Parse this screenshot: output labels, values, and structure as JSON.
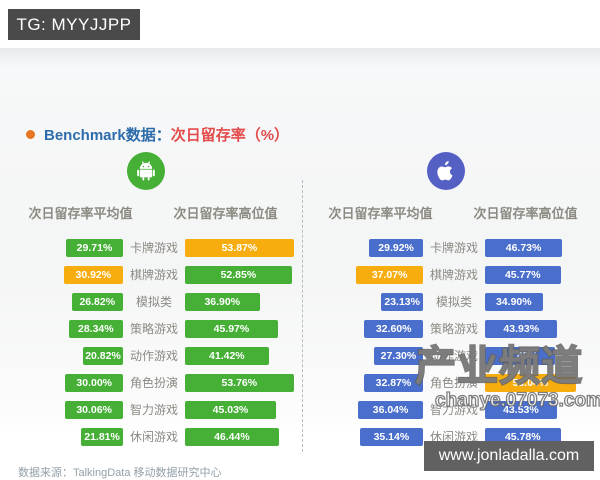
{
  "overlay": {
    "tg_label": "TG: MYYJJPP",
    "site_label": "www.jonladalla.com"
  },
  "header": {
    "title_prefix": "Benchmark数据：",
    "title_highlight": "次日留存率（%）",
    "bullet_color": "#e87522"
  },
  "columns": {
    "average_label": "次日留存率平均值",
    "high_label": "次日留存率高位值"
  },
  "footer": {
    "source": "数据来源：TalkingData 移动数据研究中心"
  },
  "watermark": {
    "title": "产业频道",
    "url": "chanye.07073.com"
  },
  "colors": {
    "android_bar": "#45b035",
    "ios_bar": "#4a6ecb",
    "highlight_bar": "#f8ad0f",
    "title_blue": "#2d6cab",
    "title_red": "#e44b4b"
  },
  "chart_data": [
    {
      "type": "bar",
      "platform": "android",
      "icon": "android-icon",
      "icon_color": "#45b035",
      "unit": "%",
      "categories": [
        "卡牌游戏",
        "棋牌游戏",
        "模拟类",
        "策略游戏",
        "动作游戏",
        "角色扮演",
        "智力游戏",
        "休闲游戏"
      ],
      "series": [
        {
          "name": "次日留存率平均值",
          "values": [
            29.71,
            30.92,
            26.82,
            28.34,
            20.82,
            30.0,
            30.06,
            21.81
          ],
          "highlight_indexes": [
            1
          ]
        },
        {
          "name": "次日留存率高位值",
          "values": [
            53.87,
            52.85,
            36.9,
            45.97,
            41.42,
            53.76,
            45.03,
            46.44
          ],
          "highlight_indexes": [
            0
          ]
        }
      ],
      "bar_color": "#45b035",
      "highlight_color": "#f8ad0f"
    },
    {
      "type": "bar",
      "platform": "ios",
      "icon": "apple-icon",
      "icon_color": "#5560c4",
      "unit": "%",
      "categories": [
        "卡牌游戏",
        "棋牌游戏",
        "模拟类",
        "策略游戏",
        "动作游戏",
        "角色扮演",
        "智力游戏",
        "休闲游戏"
      ],
      "series": [
        {
          "name": "次日留存率平均值",
          "values": [
            29.92,
            37.07,
            23.13,
            32.6,
            27.3,
            32.87,
            36.04,
            35.14
          ],
          "highlight_indexes": [
            1
          ]
        },
        {
          "name": "次日留存率高位值",
          "values": [
            46.73,
            45.77,
            34.9,
            43.93,
            42.45,
            55.04,
            43.53,
            45.78
          ],
          "highlight_indexes": [
            5
          ]
        }
      ],
      "bar_color": "#4a6ecb",
      "highlight_color": "#f8ad0f"
    }
  ]
}
